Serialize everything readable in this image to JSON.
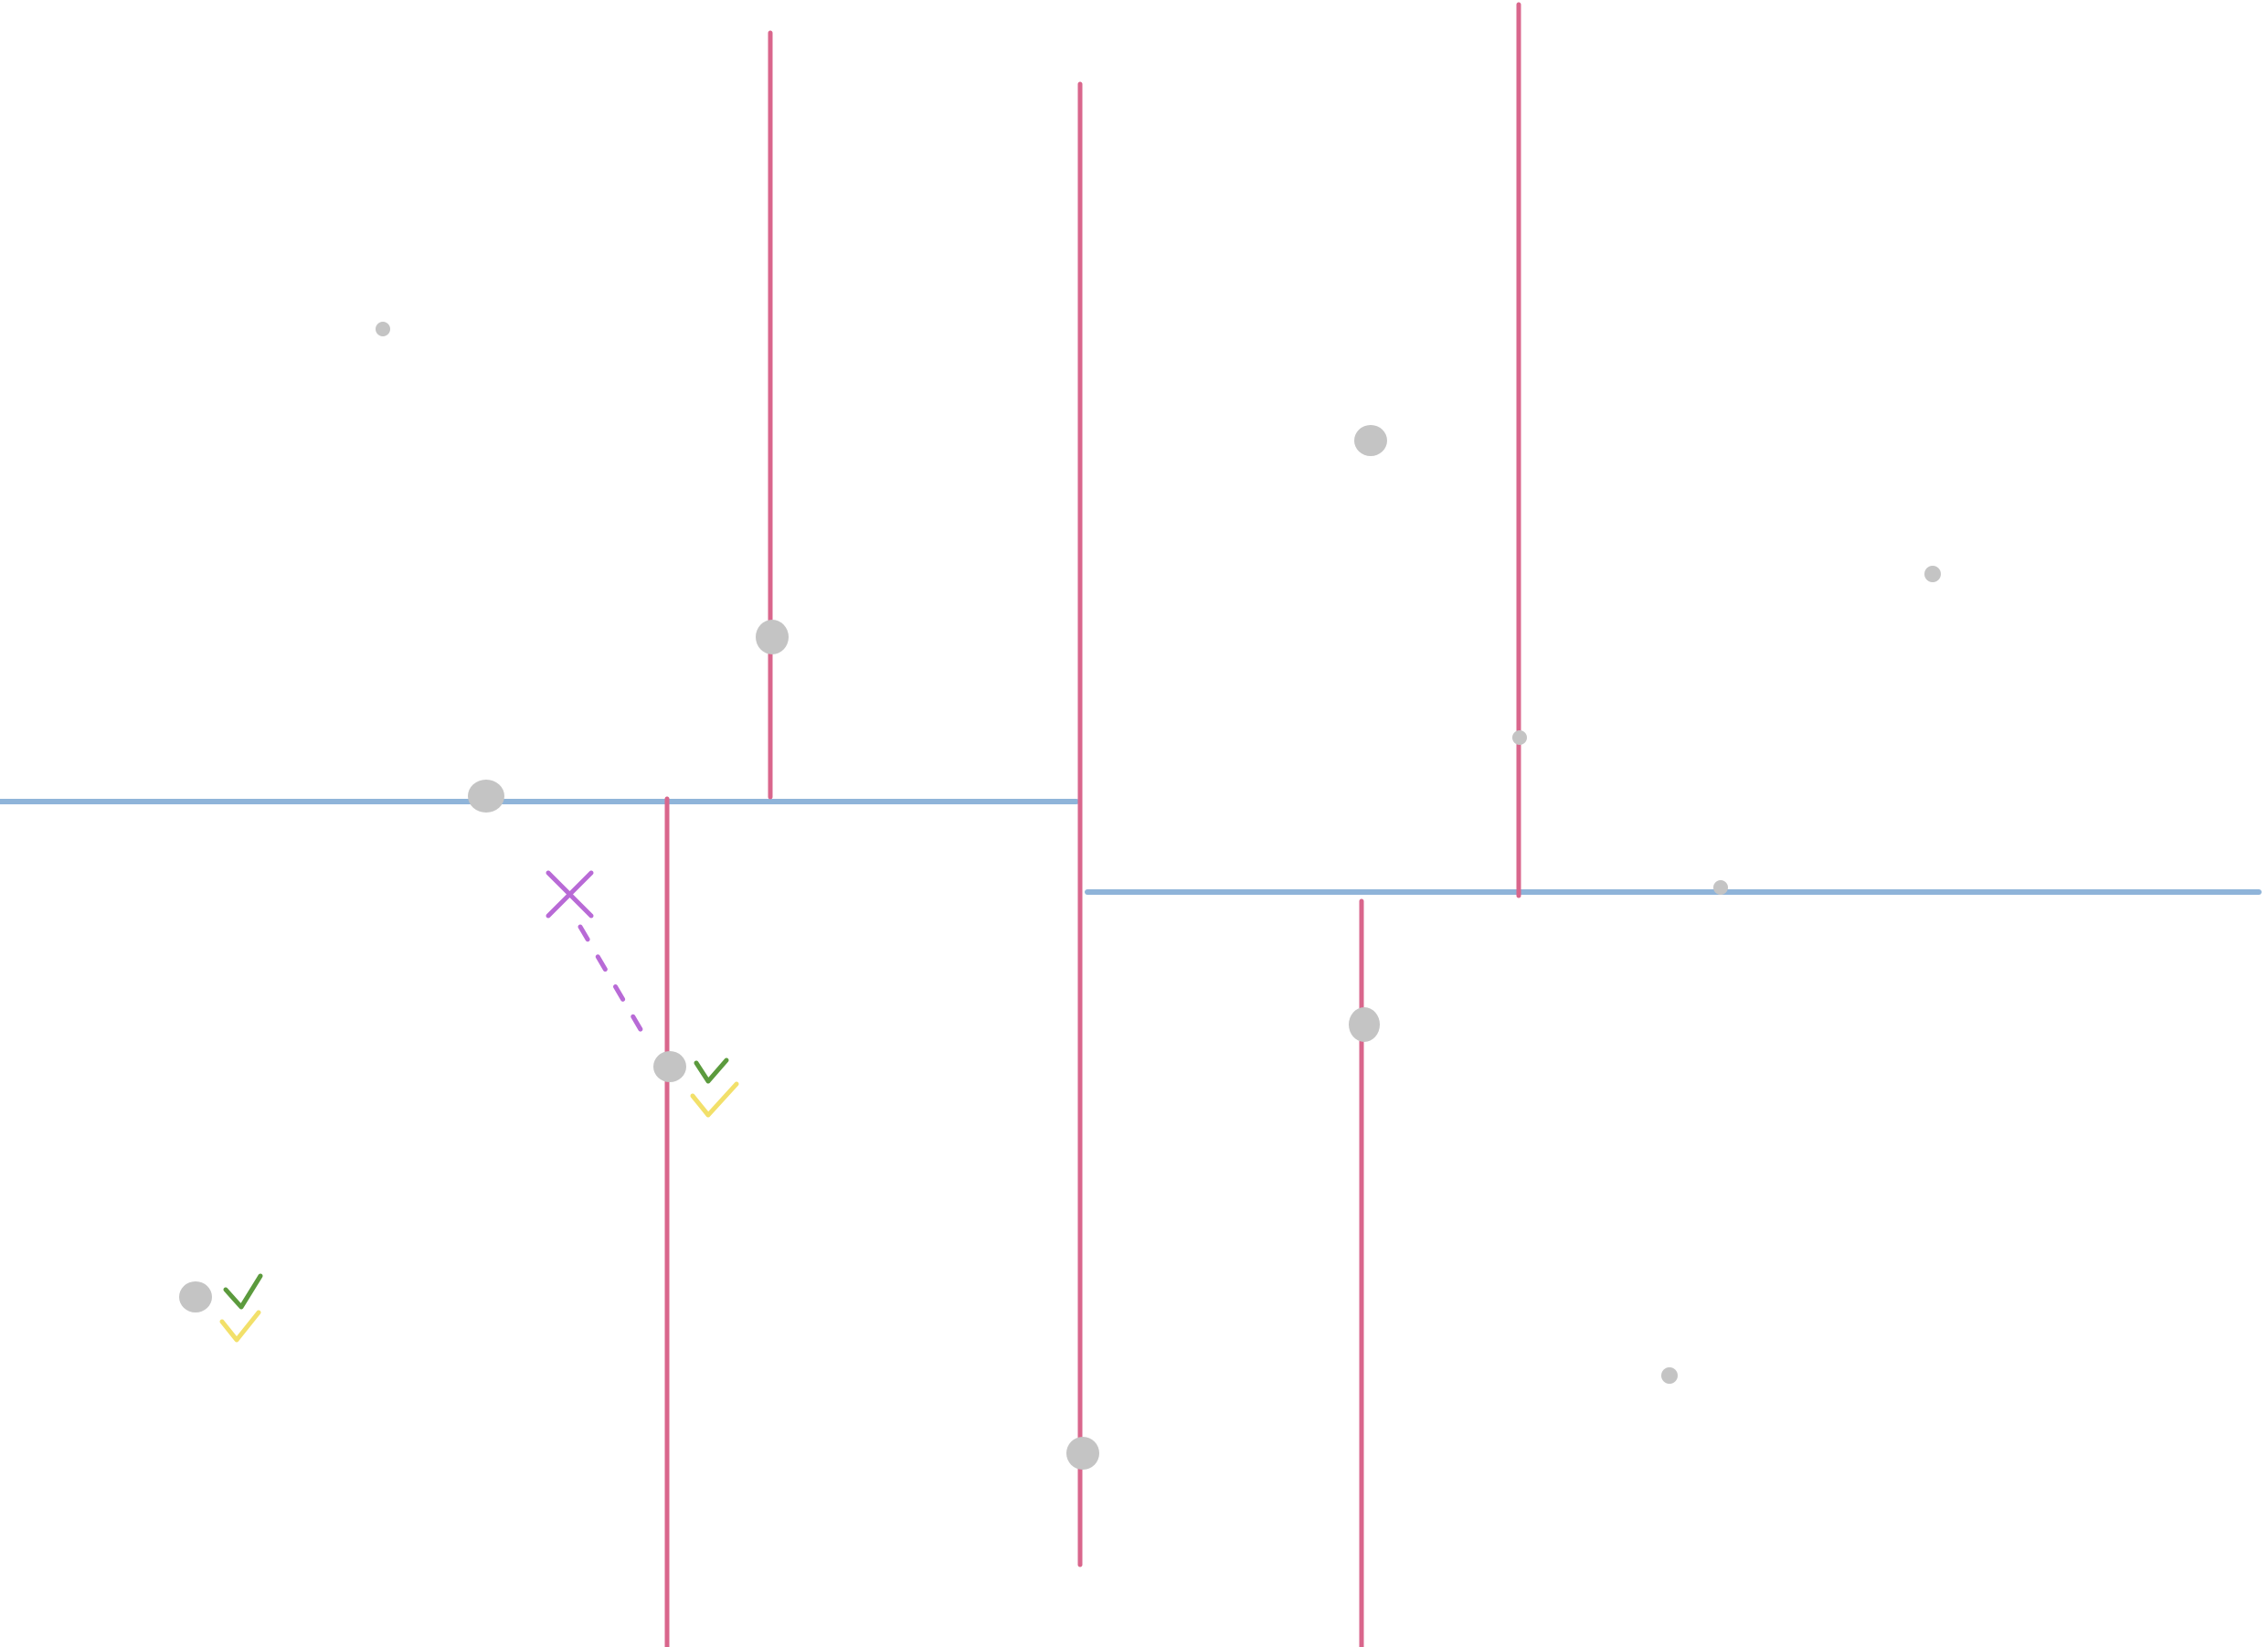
{
  "colors": {
    "vertical_split": "#d9668c",
    "horizontal_split": "#8fb4d9",
    "point": "#c4c4c4",
    "query_marker": "#b86ad6",
    "check_green": "#5b9a3d",
    "check_yellow": "#f2e06a",
    "background": "#ffffff"
  },
  "icons": {
    "query": "cross-icon",
    "result": "check-icon"
  }
}
